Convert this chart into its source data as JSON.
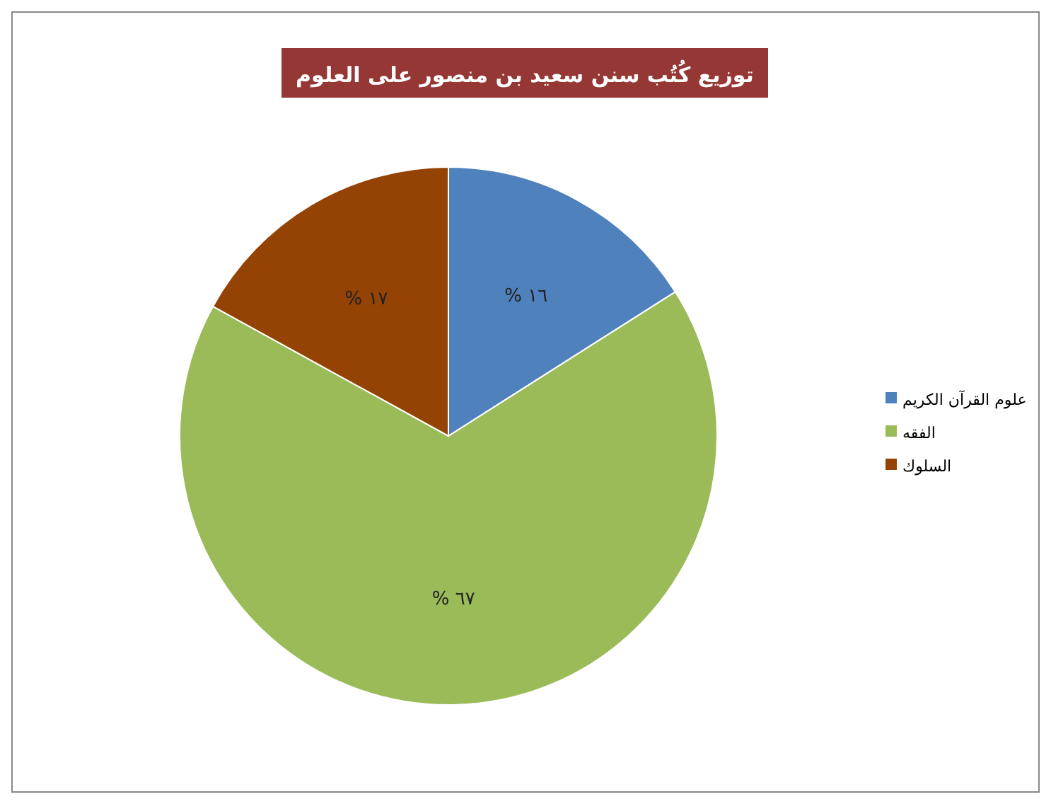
{
  "chart_data": {
    "type": "pie",
    "title": "توزيع كُتُب سنن سعيد بن منصور على العلوم",
    "categories": [
      "علوم القرآن الكريم",
      "الفقه",
      "السلوك"
    ],
    "values": [
      16,
      67,
      17
    ],
    "colors": [
      "#4f81bd",
      "#9bbb59",
      "#954305"
    ],
    "value_labels": [
      "١٦ %",
      "٦٧ %",
      "١٧ %"
    ],
    "legend": "right"
  }
}
